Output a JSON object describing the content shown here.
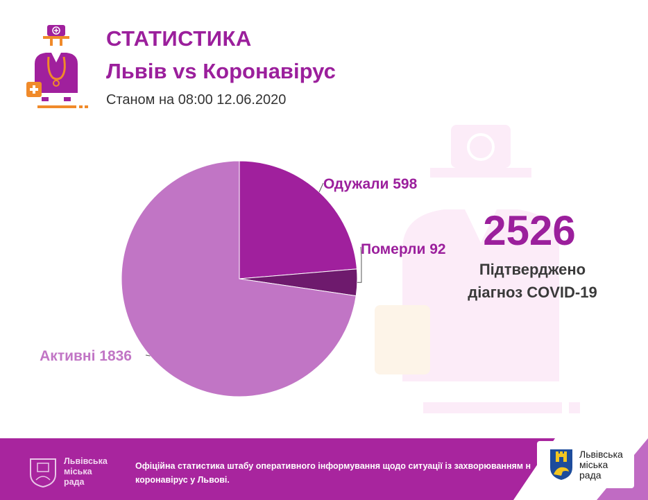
{
  "header": {
    "title": "СТАТИСТИКА",
    "subtitle": "Львів vs Коронавірус",
    "date_line": "Станом на 08:00 12.06.2020",
    "logo_icon": "doctor-icon"
  },
  "chart_data": {
    "type": "pie",
    "start_angle_deg": 0,
    "direction": "clockwise",
    "slices": [
      {
        "label": "Одужали",
        "value": 598,
        "color": "#a0209d",
        "label_color": "#9b1f9c",
        "label_side": "right"
      },
      {
        "label": "Померли",
        "value": 92,
        "color": "#6e1a6d",
        "label_color": "#9b1f9c",
        "label_side": "right"
      },
      {
        "label": "Активні",
        "value": 1836,
        "color": "#c175c5",
        "label_color": "#c175c5",
        "label_side": "left"
      }
    ],
    "total": 2526
  },
  "summary": {
    "total": "2526",
    "label_line1": "Підтверджено",
    "label_line2": "діагноз COVID-19"
  },
  "footer": {
    "org_left_line1": "Львівська",
    "org_left_line2": "міська",
    "org_left_line3": "рада",
    "text_line1": "Офіційна статистика штабу оперативного інформування щодо ситуації із захворюванням на",
    "text_line2": "коронавірус у Львові.",
    "badge_line1": "Львівська",
    "badge_line2": "міська",
    "badge_line3": "рада",
    "background_color": "#a8259e",
    "crest_icon": "lviv-crest-icon"
  }
}
